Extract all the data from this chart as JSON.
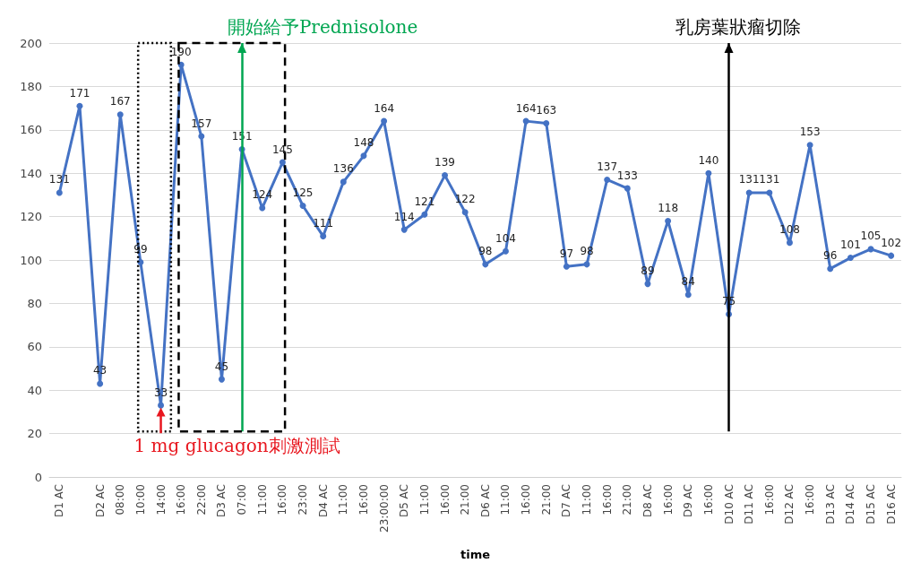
{
  "chart_data": {
    "type": "line",
    "xlabel": "time",
    "categories": [
      "D1 AC",
      null,
      "D2 AC",
      "08:00",
      "10:00",
      "14:00",
      "16:00",
      "22:00",
      "D3 AC",
      "07:00",
      "11:00",
      "16:00",
      "23:00",
      "D4 AC",
      "11:00",
      "16:00",
      "23:00:00",
      "D5 AC",
      "11:00",
      "16:00",
      "21:00",
      "D6 AC",
      "11:00",
      "16:00",
      "21:00",
      "D7 AC",
      "11:00",
      "16:00",
      "21:00",
      "D8 AC",
      "16:00",
      "D9 AC",
      "16:00",
      "D10 AC",
      "D11 AC",
      "16:00",
      "D12 AC",
      "16:00",
      "D13 AC",
      "D14 AC",
      "D15 AC",
      "D16 AC"
    ],
    "values": [
      131,
      171,
      43,
      167,
      99,
      33,
      190,
      157,
      45,
      151,
      124,
      145,
      125,
      111,
      136,
      148,
      164,
      114,
      121,
      139,
      122,
      98,
      104,
      164,
      163,
      97,
      98,
      137,
      133,
      89,
      118,
      84,
      140,
      75,
      131,
      131,
      108,
      153,
      96,
      101,
      105,
      102
    ],
    "color": "#4472c4",
    "marker": "circle",
    "data_labels": true,
    "grid": "y",
    "ylim": [
      0,
      200
    ],
    "yticks": [
      0,
      20,
      40,
      60,
      80,
      100,
      120,
      140,
      160,
      180,
      200
    ],
    "annotations": [
      {
        "text": "1 mg glucagon刺激測試",
        "x": "14:00",
        "y": 32
      }
    ],
    "ref_lines": [
      {
        "axis": "x",
        "value": "07:00",
        "label": "開始給予Prednisolone",
        "color": "#00a651"
      },
      {
        "axis": "x",
        "value": "D10 AC",
        "label": "乳房葉狀瘤切除",
        "color": "#000000"
      }
    ]
  }
}
